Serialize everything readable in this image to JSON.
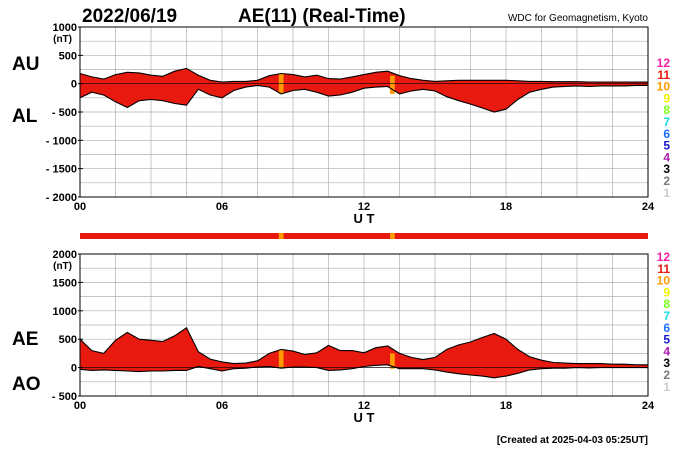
{
  "header": {
    "date": "2022/06/19",
    "title": "AE(11) (Real-Time)",
    "source": "WDC for Geomagnetism, Kyoto"
  },
  "footer": {
    "created": "[Created at 2025-04-03 05:25UT]"
  },
  "legend": {
    "items": [
      {
        "label": "12",
        "color": "#ff1fa0"
      },
      {
        "label": "11",
        "color": "#e8190f"
      },
      {
        "label": "10",
        "color": "#ff9a00"
      },
      {
        "label": "9",
        "color": "#f0f000"
      },
      {
        "label": "8",
        "color": "#7cff1a"
      },
      {
        "label": "7",
        "color": "#14e0e0"
      },
      {
        "label": "6",
        "color": "#1a70ff"
      },
      {
        "label": "5",
        "color": "#1a1acc"
      },
      {
        "label": "4",
        "color": "#b01ab0"
      },
      {
        "label": "3",
        "color": "#000000"
      },
      {
        "label": "2",
        "color": "#7a7a7a"
      },
      {
        "label": "1",
        "color": "#cccccc"
      }
    ]
  },
  "chart_data": [
    {
      "type": "area",
      "upper_label": "AU",
      "lower_label": "AL",
      "unit": "(nT)",
      "xlabel": "U T",
      "xlim": [
        0,
        24
      ],
      "ylim": [
        -2000,
        1000
      ],
      "xticks": [
        "00",
        "06",
        "12",
        "18",
        "24"
      ],
      "yticks": [
        "1000",
        "500",
        "0",
        "- 500",
        "- 1000",
        "- 1500",
        "- 2000"
      ],
      "fill_color": "#e8190f",
      "highlight_color": "#ff9a00",
      "highlights": [
        [
          8.4,
          8.6
        ],
        [
          13.1,
          13.3
        ]
      ],
      "x": [
        0,
        0.5,
        1,
        1.5,
        2,
        2.5,
        3,
        3.5,
        4,
        4.5,
        5,
        5.5,
        6,
        6.5,
        7,
        7.5,
        8,
        8.5,
        9,
        9.5,
        10,
        10.5,
        11,
        11.5,
        12,
        12.5,
        13,
        13.5,
        14,
        14.5,
        15,
        15.5,
        16,
        16.5,
        17,
        17.5,
        18,
        18.5,
        19,
        19.5,
        20,
        20.5,
        21,
        21.5,
        22,
        22.5,
        23,
        23.5,
        24
      ],
      "series": [
        {
          "role": "AU",
          "values": [
            180,
            120,
            80,
            160,
            200,
            190,
            150,
            130,
            220,
            270,
            150,
            60,
            30,
            40,
            40,
            60,
            140,
            180,
            160,
            120,
            150,
            90,
            80,
            120,
            160,
            200,
            220,
            140,
            90,
            60,
            40,
            50,
            60,
            60,
            60,
            60,
            60,
            50,
            40,
            40,
            35,
            35,
            35,
            30,
            30,
            30,
            30,
            30,
            30
          ]
        },
        {
          "role": "AL",
          "values": [
            -250,
            -150,
            -200,
            -320,
            -420,
            -300,
            -280,
            -300,
            -350,
            -380,
            -100,
            -200,
            -250,
            -120,
            -60,
            -30,
            -60,
            -180,
            -120,
            -100,
            -150,
            -220,
            -200,
            -150,
            -80,
            -60,
            -50,
            -180,
            -130,
            -100,
            -130,
            -230,
            -300,
            -360,
            -430,
            -500,
            -450,
            -280,
            -150,
            -100,
            -60,
            -50,
            -40,
            -50,
            -40,
            -40,
            -40,
            -30,
            -30
          ]
        }
      ]
    },
    {
      "type": "area",
      "upper_label": "AE",
      "lower_label": "AO",
      "unit": "(nT)",
      "xlabel": "U T",
      "xlim": [
        0,
        24
      ],
      "ylim": [
        -500,
        2000
      ],
      "xticks": [
        "00",
        "06",
        "12",
        "18",
        "24"
      ],
      "yticks": [
        "2000",
        "1500",
        "1000",
        "500",
        "0",
        "- 500"
      ],
      "fill_color": "#e8190f",
      "highlight_color": "#ff9a00",
      "highlights": [
        [
          8.4,
          8.6
        ],
        [
          13.1,
          13.3
        ]
      ],
      "x": [
        0,
        0.5,
        1,
        1.5,
        2,
        2.5,
        3,
        3.5,
        4,
        4.5,
        5,
        5.5,
        6,
        6.5,
        7,
        7.5,
        8,
        8.5,
        9,
        9.5,
        10,
        10.5,
        11,
        11.5,
        12,
        12.5,
        13,
        13.5,
        14,
        14.5,
        15,
        15.5,
        16,
        16.5,
        17,
        17.5,
        18,
        18.5,
        19,
        19.5,
        20,
        20.5,
        21,
        21.5,
        22,
        22.5,
        23,
        23.5,
        24
      ],
      "series": [
        {
          "role": "AE",
          "values": [
            500,
            300,
            250,
            480,
            620,
            500,
            480,
            460,
            560,
            700,
            280,
            150,
            100,
            70,
            80,
            120,
            250,
            320,
            290,
            230,
            260,
            390,
            300,
            300,
            260,
            350,
            380,
            250,
            180,
            140,
            180,
            320,
            400,
            450,
            530,
            600,
            500,
            320,
            190,
            130,
            90,
            80,
            70,
            70,
            70,
            60,
            60,
            50,
            50
          ]
        },
        {
          "role": "AO",
          "values": [
            -30,
            -50,
            -40,
            -50,
            -60,
            -70,
            -60,
            -60,
            -50,
            -50,
            20,
            -20,
            -60,
            -20,
            -10,
            10,
            20,
            -10,
            10,
            10,
            0,
            -50,
            -40,
            -20,
            20,
            40,
            50,
            -20,
            -20,
            -20,
            -40,
            -80,
            -110,
            -130,
            -150,
            -180,
            -150,
            -100,
            -40,
            -20,
            -10,
            -10,
            0,
            -5,
            0,
            0,
            0,
            0,
            0
          ]
        }
      ]
    }
  ]
}
